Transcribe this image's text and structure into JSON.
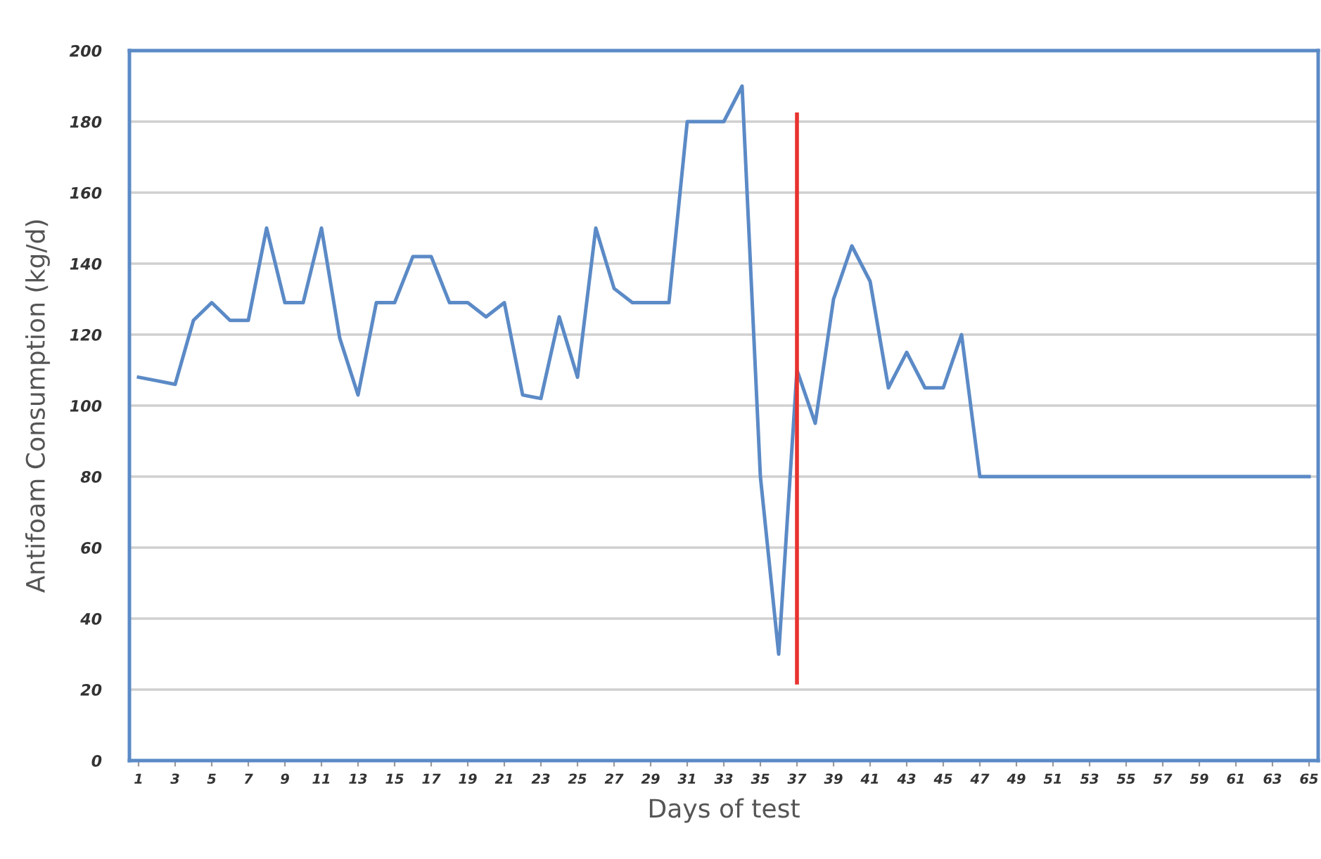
{
  "chart_data": {
    "type": "line",
    "xlabel": "Days of test",
    "ylabel": "Antifoam Consumption (kg/d)",
    "x": [
      1,
      2,
      3,
      4,
      5,
      6,
      7,
      8,
      9,
      10,
      11,
      12,
      13,
      14,
      15,
      16,
      17,
      18,
      19,
      20,
      21,
      22,
      23,
      24,
      25,
      26,
      27,
      28,
      29,
      30,
      31,
      32,
      33,
      34,
      35,
      36,
      37,
      38,
      39,
      40,
      41,
      42,
      43,
      44,
      45,
      46,
      47,
      48,
      49,
      50,
      51,
      52,
      53,
      54,
      55,
      56,
      57,
      58,
      59,
      60,
      61,
      62,
      63,
      64,
      65
    ],
    "series": [
      {
        "color": "#5b8ac6",
        "values": [
          108,
          107,
          106,
          124,
          129,
          124,
          124,
          150,
          129,
          129,
          150,
          119,
          103,
          129,
          129,
          142,
          142,
          129,
          129,
          125,
          129,
          103,
          102,
          125,
          108,
          150,
          133,
          129,
          129,
          129,
          180,
          180,
          180,
          190,
          80,
          30,
          110,
          95,
          130,
          145,
          135,
          105,
          115,
          105,
          105,
          120,
          80,
          80,
          80,
          80,
          80,
          80,
          80,
          80,
          80,
          80,
          80,
          80,
          80,
          80,
          80,
          80,
          80,
          80,
          80
        ]
      }
    ],
    "xlim": [
      0.5,
      65.5
    ],
    "xticks": [
      1,
      3,
      5,
      7,
      9,
      11,
      13,
      15,
      17,
      19,
      21,
      23,
      25,
      27,
      29,
      31,
      33,
      35,
      37,
      39,
      41,
      43,
      45,
      47,
      49,
      51,
      53,
      55,
      57,
      59,
      61,
      63,
      65
    ],
    "ylim": [
      0,
      200
    ],
    "yticks": [
      0,
      20,
      40,
      60,
      80,
      100,
      120,
      140,
      160,
      180,
      200
    ],
    "grid": "y",
    "legend": false,
    "marker": "none",
    "line_style": "solid",
    "ref_lines": [
      {
        "axis": "x",
        "value": 37,
        "color": "#e8322e",
        "line_style": "solid"
      }
    ]
  }
}
